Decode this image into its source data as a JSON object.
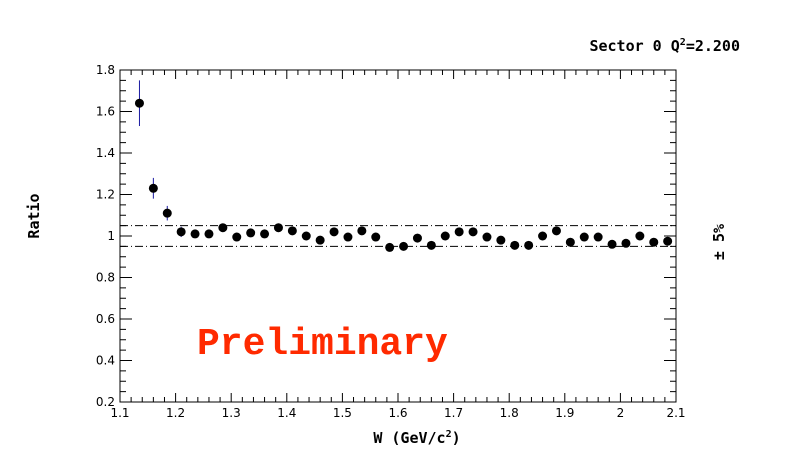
{
  "chart_data": {
    "type": "scatter",
    "title_main": "Sector 0 Q",
    "title_sup": "2",
    "title_value": "=2.200",
    "xlabel_main": "W (GeV/c",
    "xlabel_sup": "2",
    "xlabel_end": ")",
    "ylabel": "Ratio",
    "band_label": "± 5%",
    "watermark": "Preliminary",
    "xlim": [
      1.1,
      2.1
    ],
    "ylim": [
      0.2,
      1.8
    ],
    "x_ticks": [
      "1.1",
      "1.2",
      "1.3",
      "1.4",
      "1.5",
      "1.6",
      "1.7",
      "1.8",
      "1.9",
      "2",
      "2.1"
    ],
    "y_ticks": [
      "0.2",
      "0.4",
      "0.6",
      "0.8",
      "1",
      "1.2",
      "1.4",
      "1.6",
      "1.8"
    ],
    "band": [
      0.95,
      1.05
    ],
    "marker_color": "#000000",
    "error_color": "#1a1aa0",
    "points": [
      {
        "x": 1.135,
        "y": 1.64,
        "err": 0.11
      },
      {
        "x": 1.16,
        "y": 1.23,
        "err": 0.05
      },
      {
        "x": 1.185,
        "y": 1.11,
        "err": 0.035
      },
      {
        "x": 1.21,
        "y": 1.02,
        "err": 0.025
      },
      {
        "x": 1.235,
        "y": 1.01,
        "err": 0.02
      },
      {
        "x": 1.26,
        "y": 1.01,
        "err": 0.02
      },
      {
        "x": 1.285,
        "y": 1.04,
        "err": 0.02
      },
      {
        "x": 1.31,
        "y": 0.995,
        "err": 0.02
      },
      {
        "x": 1.335,
        "y": 1.015,
        "err": 0.02
      },
      {
        "x": 1.36,
        "y": 1.01,
        "err": 0.02
      },
      {
        "x": 1.385,
        "y": 1.04,
        "err": 0.02
      },
      {
        "x": 1.41,
        "y": 1.025,
        "err": 0.02
      },
      {
        "x": 1.435,
        "y": 1.0,
        "err": 0.02
      },
      {
        "x": 1.46,
        "y": 0.98,
        "err": 0.02
      },
      {
        "x": 1.485,
        "y": 1.02,
        "err": 0.02
      },
      {
        "x": 1.51,
        "y": 0.995,
        "err": 0.02
      },
      {
        "x": 1.535,
        "y": 1.025,
        "err": 0.02
      },
      {
        "x": 1.56,
        "y": 0.995,
        "err": 0.02
      },
      {
        "x": 1.585,
        "y": 0.945,
        "err": 0.02
      },
      {
        "x": 1.61,
        "y": 0.95,
        "err": 0.02
      },
      {
        "x": 1.635,
        "y": 0.99,
        "err": 0.02
      },
      {
        "x": 1.66,
        "y": 0.955,
        "err": 0.02
      },
      {
        "x": 1.685,
        "y": 1.0,
        "err": 0.02
      },
      {
        "x": 1.71,
        "y": 1.02,
        "err": 0.02
      },
      {
        "x": 1.735,
        "y": 1.02,
        "err": 0.02
      },
      {
        "x": 1.76,
        "y": 0.995,
        "err": 0.02
      },
      {
        "x": 1.785,
        "y": 0.98,
        "err": 0.02
      },
      {
        "x": 1.81,
        "y": 0.955,
        "err": 0.02
      },
      {
        "x": 1.835,
        "y": 0.955,
        "err": 0.02
      },
      {
        "x": 1.86,
        "y": 1.0,
        "err": 0.02
      },
      {
        "x": 1.885,
        "y": 1.025,
        "err": 0.02
      },
      {
        "x": 1.91,
        "y": 0.97,
        "err": 0.02
      },
      {
        "x": 1.935,
        "y": 0.995,
        "err": 0.02
      },
      {
        "x": 1.96,
        "y": 0.995,
        "err": 0.02
      },
      {
        "x": 1.985,
        "y": 0.96,
        "err": 0.02
      },
      {
        "x": 2.01,
        "y": 0.965,
        "err": 0.02
      },
      {
        "x": 2.035,
        "y": 1.0,
        "err": 0.02
      },
      {
        "x": 2.06,
        "y": 0.97,
        "err": 0.02
      },
      {
        "x": 2.085,
        "y": 0.975,
        "err": 0.02
      }
    ]
  }
}
